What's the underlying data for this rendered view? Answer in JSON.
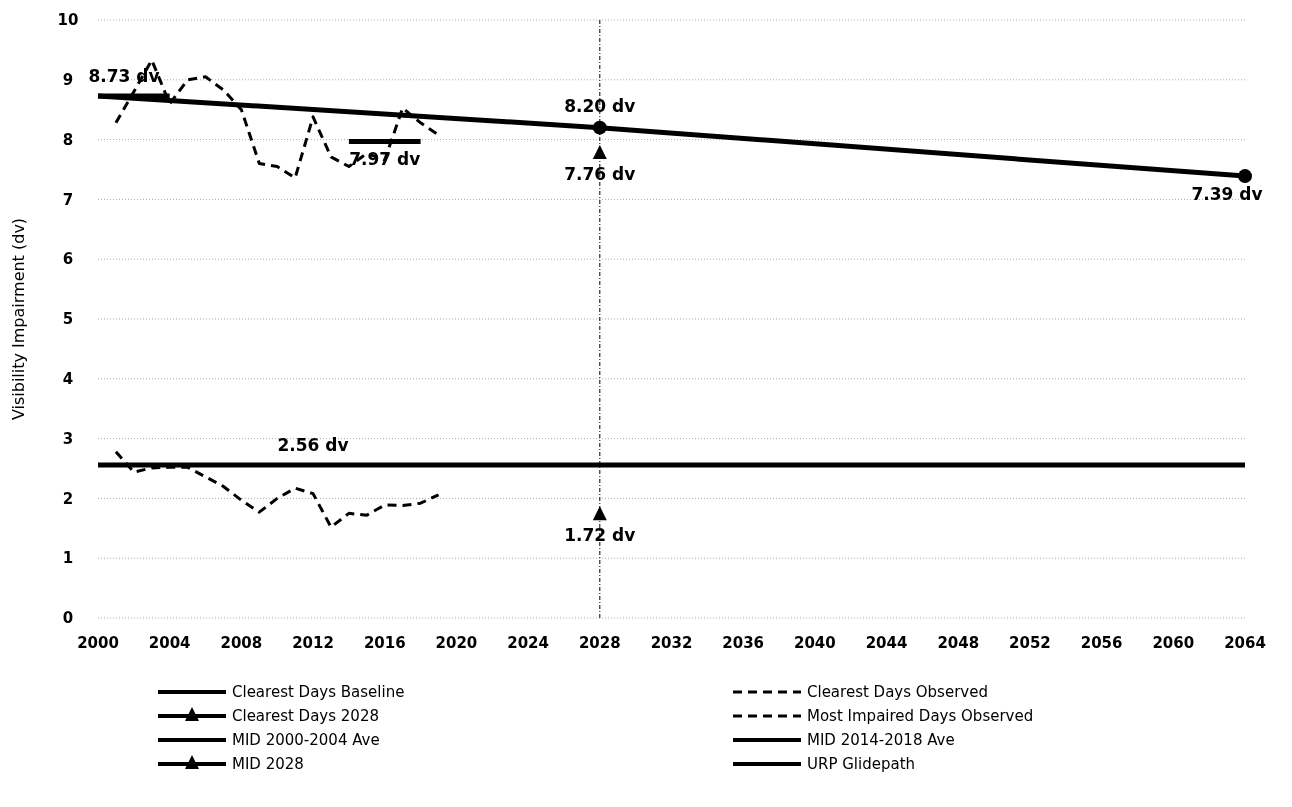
{
  "chart_data": {
    "type": "line",
    "ylabel": "Visibility Impairment (dv)",
    "xlim": [
      2000,
      2064
    ],
    "xticks": [
      2000,
      2004,
      2008,
      2012,
      2016,
      2020,
      2024,
      2028,
      2032,
      2036,
      2040,
      2044,
      2048,
      2052,
      2056,
      2060,
      2064
    ],
    "ylim": [
      0,
      10
    ],
    "yticks": [
      0,
      1,
      2,
      3,
      4,
      5,
      6,
      7,
      8,
      9,
      10
    ],
    "grid": "y",
    "legend": "bottom",
    "series": [
      {
        "name": "Clearest Days Baseline",
        "color": "#000000",
        "x": [
          2000,
          2064
        ],
        "values": [
          2.56,
          2.56
        ],
        "line_style": "solid",
        "marker": "none"
      },
      {
        "name": "Clearest Days Observed",
        "color": "#000000",
        "x": [
          2001,
          2002,
          2003,
          2004,
          2005,
          2006,
          2007,
          2008,
          2009,
          2010,
          2011,
          2012,
          2013,
          2014,
          2015,
          2016,
          2017,
          2018,
          2019
        ],
        "values": [
          2.78,
          2.44,
          2.51,
          2.52,
          2.52,
          2.36,
          2.2,
          1.97,
          1.77,
          2.0,
          2.17,
          2.08,
          1.52,
          1.75,
          1.72,
          1.89,
          1.88,
          1.92,
          2.06
        ],
        "line_style": "dashed",
        "marker": "none"
      },
      {
        "name": "Clearest Days 2028",
        "color": "#000000",
        "x": [
          2028
        ],
        "values": [
          1.72
        ],
        "line_style": "solid",
        "marker": "triangle"
      },
      {
        "name": "Most Impaired Days Observed",
        "color": "#000000",
        "x": [
          2001,
          2002,
          2003,
          2004,
          2005,
          2006,
          2007,
          2008,
          2009,
          2010,
          2011,
          2012,
          2013,
          2014,
          2015,
          2016,
          2017,
          2018,
          2019
        ],
        "values": [
          8.28,
          8.8,
          9.33,
          8.6,
          9.0,
          9.05,
          8.83,
          8.5,
          7.6,
          7.55,
          7.36,
          8.38,
          7.71,
          7.55,
          7.77,
          7.66,
          8.53,
          8.28,
          8.08
        ],
        "line_style": "dashed",
        "marker": "none"
      },
      {
        "name": "MID 2000-2004 Ave",
        "color": "#000000",
        "x": [
          2000,
          2004
        ],
        "values": [
          8.73,
          8.73
        ],
        "line_style": "solid",
        "marker": "none"
      },
      {
        "name": "MID 2014-2018 Ave",
        "color": "#000000",
        "x": [
          2014,
          2018
        ],
        "values": [
          7.97,
          7.97
        ],
        "line_style": "solid",
        "marker": "none"
      },
      {
        "name": "MID 2028",
        "color": "#000000",
        "x": [
          2028
        ],
        "values": [
          7.76
        ],
        "line_style": "solid",
        "marker": "triangle"
      },
      {
        "name": "URP Glidepath",
        "color": "#000000",
        "x": [
          2000,
          2028,
          2064
        ],
        "values": [
          8.73,
          8.2,
          7.39
        ],
        "value_labels": [
          null,
          "8.20 dv",
          "7.39 dv"
        ],
        "line_style": "solid",
        "marker": "circle"
      }
    ],
    "ref_lines": [
      {
        "axis": "x",
        "value": 2028,
        "color": "#000000",
        "line_style": "dotted"
      }
    ],
    "annotations": [
      {
        "text": "8.73 dv",
        "x": 2000,
        "y": 8.73
      },
      {
        "text": "7.97 dv",
        "x": 2016,
        "y": 7.97
      },
      {
        "text": "7.76 dv",
        "x": 2028,
        "y": 7.76
      },
      {
        "text": "2.56 dv",
        "x": 2012,
        "y": 2.56
      },
      {
        "text": "1.72 dv",
        "x": 2028,
        "y": 1.72
      }
    ]
  }
}
